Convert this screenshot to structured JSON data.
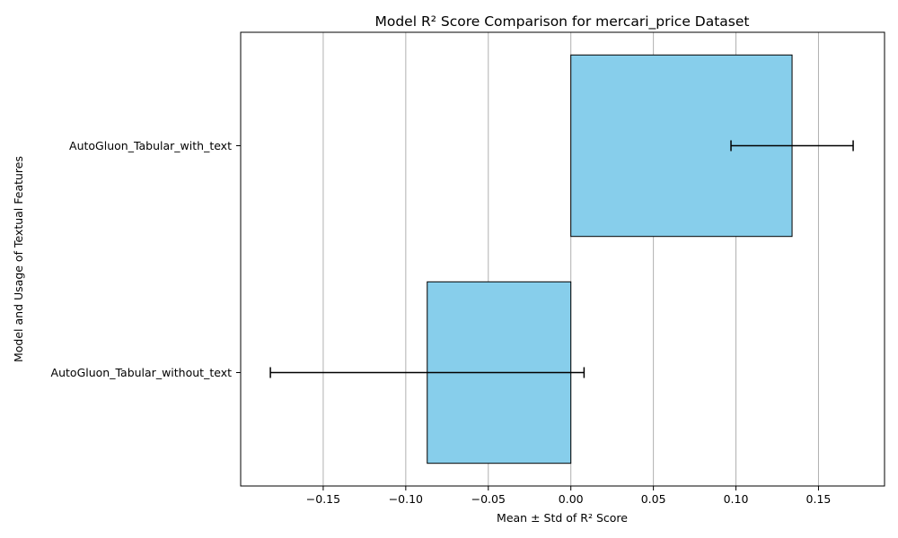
{
  "chart_data": {
    "type": "bar",
    "orientation": "horizontal",
    "title": "Model R² Score Comparison for mercari_price Dataset",
    "xlabel": "Mean ± Std of R² Score",
    "ylabel": "Model and Usage of Textual Features",
    "categories": [
      "AutoGluon_Tabular_without_text",
      "AutoGluon_Tabular_with_text"
    ],
    "values": [
      -0.087,
      0.134
    ],
    "errors": [
      0.095,
      0.037
    ],
    "xlim": [
      -0.2,
      0.19
    ],
    "xticks": [
      -0.15,
      -0.1,
      -0.05,
      0.0,
      0.05,
      0.1,
      0.15
    ],
    "xtick_labels": [
      "−0.15",
      "−0.10",
      "−0.05",
      "0.00",
      "0.05",
      "0.10",
      "0.15"
    ],
    "grid": "vertical",
    "colors": {
      "bar_fill": "#87ceeb",
      "bar_edge": "#000000",
      "grid": "#b0b0b0",
      "error_bar": "#000000"
    }
  }
}
